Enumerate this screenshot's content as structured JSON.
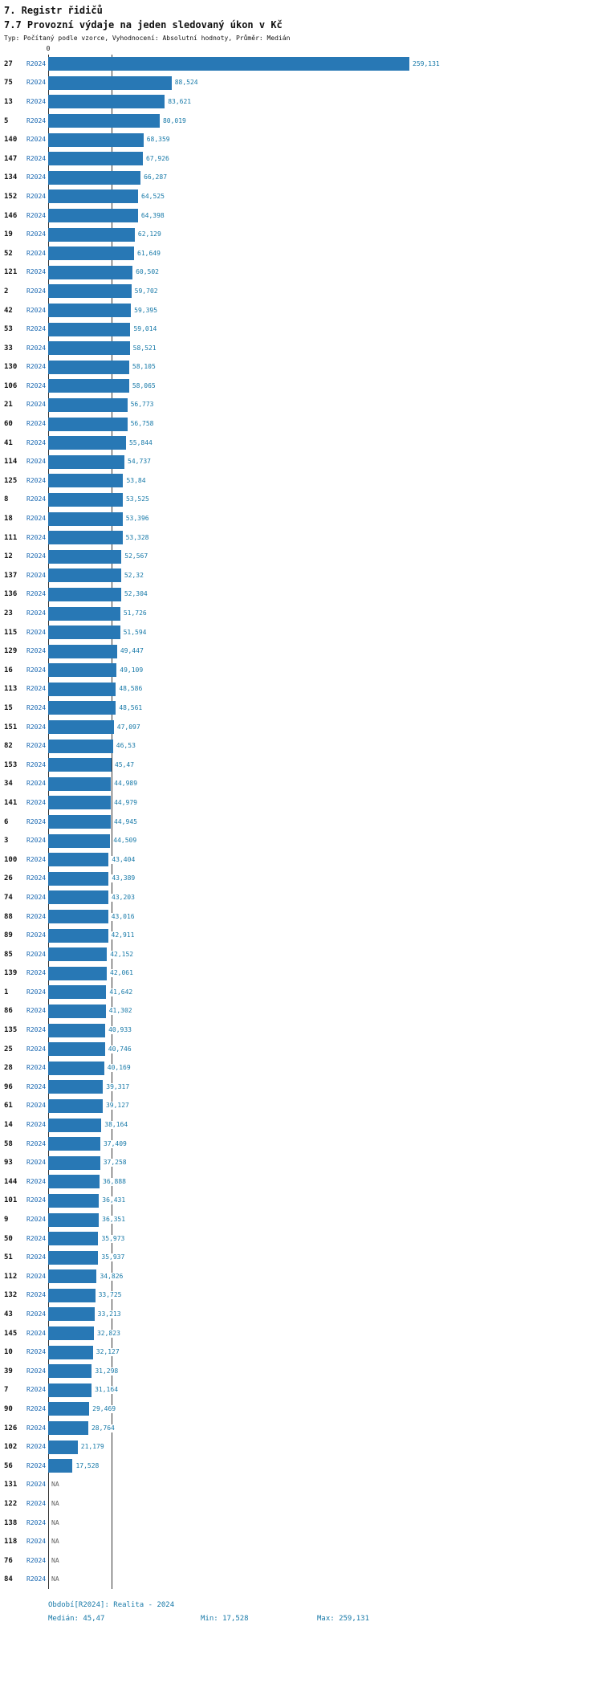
{
  "chart_data": {
    "type": "bar",
    "orientation": "horizontal",
    "section_title": "7. Registr řidičů",
    "title": "7.7 Provozní výdaje na jeden sledovaný úkon v Kč",
    "subtitle": "Typ: Počítaný podle vzorce, Vyhodnocení: Absolutní hodnoty, Průměr: Medián",
    "x_axis": {
      "zero_label": "0",
      "min": 0,
      "max": 259.131,
      "grid": false
    },
    "median_value": 45.47,
    "legend": "none",
    "colors": {
      "bar": "#2878b5",
      "period_label": "#1565b0",
      "value_label": "#1779a8",
      "footer": "#1779a8",
      "line": "#333333"
    },
    "rows": [
      {
        "rank": "27",
        "period": "R2024",
        "label": "259,131",
        "value": 259.131
      },
      {
        "rank": "75",
        "period": "R2024",
        "label": "88,524",
        "value": 88.524
      },
      {
        "rank": "13",
        "period": "R2024",
        "label": "83,621",
        "value": 83.621
      },
      {
        "rank": "5",
        "period": "R2024",
        "label": "80,019",
        "value": 80.019
      },
      {
        "rank": "140",
        "period": "R2024",
        "label": "68,359",
        "value": 68.359
      },
      {
        "rank": "147",
        "period": "R2024",
        "label": "67,926",
        "value": 67.926
      },
      {
        "rank": "134",
        "period": "R2024",
        "label": "66,287",
        "value": 66.287
      },
      {
        "rank": "152",
        "period": "R2024",
        "label": "64,525",
        "value": 64.525
      },
      {
        "rank": "146",
        "period": "R2024",
        "label": "64,398",
        "value": 64.398
      },
      {
        "rank": "19",
        "period": "R2024",
        "label": "62,129",
        "value": 62.129
      },
      {
        "rank": "52",
        "period": "R2024",
        "label": "61,649",
        "value": 61.649
      },
      {
        "rank": "121",
        "period": "R2024",
        "label": "60,502",
        "value": 60.502
      },
      {
        "rank": "2",
        "period": "R2024",
        "label": "59,702",
        "value": 59.702
      },
      {
        "rank": "42",
        "period": "R2024",
        "label": "59,395",
        "value": 59.395
      },
      {
        "rank": "53",
        "period": "R2024",
        "label": "59,014",
        "value": 59.014
      },
      {
        "rank": "33",
        "period": "R2024",
        "label": "58,521",
        "value": 58.521
      },
      {
        "rank": "130",
        "period": "R2024",
        "label": "58,105",
        "value": 58.105
      },
      {
        "rank": "106",
        "period": "R2024",
        "label": "58,065",
        "value": 58.065
      },
      {
        "rank": "21",
        "period": "R2024",
        "label": "56,773",
        "value": 56.773
      },
      {
        "rank": "60",
        "period": "R2024",
        "label": "56,758",
        "value": 56.758
      },
      {
        "rank": "41",
        "period": "R2024",
        "label": "55,844",
        "value": 55.844
      },
      {
        "rank": "114",
        "period": "R2024",
        "label": "54,737",
        "value": 54.737
      },
      {
        "rank": "125",
        "period": "R2024",
        "label": "53,84",
        "value": 53.84
      },
      {
        "rank": "8",
        "period": "R2024",
        "label": "53,525",
        "value": 53.525
      },
      {
        "rank": "18",
        "period": "R2024",
        "label": "53,396",
        "value": 53.396
      },
      {
        "rank": "111",
        "period": "R2024",
        "label": "53,328",
        "value": 53.328
      },
      {
        "rank": "12",
        "period": "R2024",
        "label": "52,567",
        "value": 52.567
      },
      {
        "rank": "137",
        "period": "R2024",
        "label": "52,32",
        "value": 52.32
      },
      {
        "rank": "136",
        "period": "R2024",
        "label": "52,304",
        "value": 52.304
      },
      {
        "rank": "23",
        "period": "R2024",
        "label": "51,726",
        "value": 51.726
      },
      {
        "rank": "115",
        "period": "R2024",
        "label": "51,594",
        "value": 51.594
      },
      {
        "rank": "129",
        "period": "R2024",
        "label": "49,447",
        "value": 49.447
      },
      {
        "rank": "16",
        "period": "R2024",
        "label": "49,109",
        "value": 49.109
      },
      {
        "rank": "113",
        "period": "R2024",
        "label": "48,586",
        "value": 48.586
      },
      {
        "rank": "15",
        "period": "R2024",
        "label": "48,561",
        "value": 48.561
      },
      {
        "rank": "151",
        "period": "R2024",
        "label": "47,097",
        "value": 47.097
      },
      {
        "rank": "82",
        "period": "R2024",
        "label": "46,53",
        "value": 46.53
      },
      {
        "rank": "153",
        "period": "R2024",
        "label": "45,47",
        "value": 45.47
      },
      {
        "rank": "34",
        "period": "R2024",
        "label": "44,989",
        "value": 44.989
      },
      {
        "rank": "141",
        "period": "R2024",
        "label": "44,979",
        "value": 44.979
      },
      {
        "rank": "6",
        "period": "R2024",
        "label": "44,945",
        "value": 44.945
      },
      {
        "rank": "3",
        "period": "R2024",
        "label": "44,509",
        "value": 44.509
      },
      {
        "rank": "100",
        "period": "R2024",
        "label": "43,404",
        "value": 43.404
      },
      {
        "rank": "26",
        "period": "R2024",
        "label": "43,389",
        "value": 43.389
      },
      {
        "rank": "74",
        "period": "R2024",
        "label": "43,203",
        "value": 43.203
      },
      {
        "rank": "88",
        "period": "R2024",
        "label": "43,016",
        "value": 43.016
      },
      {
        "rank": "89",
        "period": "R2024",
        "label": "42,911",
        "value": 42.911
      },
      {
        "rank": "85",
        "period": "R2024",
        "label": "42,152",
        "value": 42.152
      },
      {
        "rank": "139",
        "period": "R2024",
        "label": "42,061",
        "value": 42.061
      },
      {
        "rank": "1",
        "period": "R2024",
        "label": "41,642",
        "value": 41.642
      },
      {
        "rank": "86",
        "period": "R2024",
        "label": "41,302",
        "value": 41.302
      },
      {
        "rank": "135",
        "period": "R2024",
        "label": "40,933",
        "value": 40.933
      },
      {
        "rank": "25",
        "period": "R2024",
        "label": "40,746",
        "value": 40.746
      },
      {
        "rank": "28",
        "period": "R2024",
        "label": "40,169",
        "value": 40.169
      },
      {
        "rank": "96",
        "period": "R2024",
        "label": "39,317",
        "value": 39.317
      },
      {
        "rank": "61",
        "period": "R2024",
        "label": "39,127",
        "value": 39.127
      },
      {
        "rank": "14",
        "period": "R2024",
        "label": "38,164",
        "value": 38.164
      },
      {
        "rank": "58",
        "period": "R2024",
        "label": "37,409",
        "value": 37.409
      },
      {
        "rank": "93",
        "period": "R2024",
        "label": "37,258",
        "value": 37.258
      },
      {
        "rank": "144",
        "period": "R2024",
        "label": "36,888",
        "value": 36.888
      },
      {
        "rank": "101",
        "period": "R2024",
        "label": "36,431",
        "value": 36.431
      },
      {
        "rank": "9",
        "period": "R2024",
        "label": "36,351",
        "value": 36.351
      },
      {
        "rank": "50",
        "period": "R2024",
        "label": "35,973",
        "value": 35.973
      },
      {
        "rank": "51",
        "period": "R2024",
        "label": "35,937",
        "value": 35.937
      },
      {
        "rank": "112",
        "period": "R2024",
        "label": "34,826",
        "value": 34.826
      },
      {
        "rank": "132",
        "period": "R2024",
        "label": "33,725",
        "value": 33.725
      },
      {
        "rank": "43",
        "period": "R2024",
        "label": "33,213",
        "value": 33.213
      },
      {
        "rank": "145",
        "period": "R2024",
        "label": "32,823",
        "value": 32.823
      },
      {
        "rank": "10",
        "period": "R2024",
        "label": "32,127",
        "value": 32.127
      },
      {
        "rank": "39",
        "period": "R2024",
        "label": "31,298",
        "value": 31.298
      },
      {
        "rank": "7",
        "period": "R2024",
        "label": "31,164",
        "value": 31.164
      },
      {
        "rank": "90",
        "period": "R2024",
        "label": "29,469",
        "value": 29.469
      },
      {
        "rank": "126",
        "period": "R2024",
        "label": "28,764",
        "value": 28.764
      },
      {
        "rank": "102",
        "period": "R2024",
        "label": "21,179",
        "value": 21.179
      },
      {
        "rank": "56",
        "period": "R2024",
        "label": "17,528",
        "value": 17.528
      },
      {
        "rank": "131",
        "period": "R2024",
        "label": "NA",
        "value": null
      },
      {
        "rank": "122",
        "period": "R2024",
        "label": "NA",
        "value": null
      },
      {
        "rank": "138",
        "period": "R2024",
        "label": "NA",
        "value": null
      },
      {
        "rank": "118",
        "period": "R2024",
        "label": "NA",
        "value": null
      },
      {
        "rank": "76",
        "period": "R2024",
        "label": "NA",
        "value": null
      },
      {
        "rank": "84",
        "period": "R2024",
        "label": "NA",
        "value": null
      }
    ]
  },
  "footer": {
    "period": "Období[R2024]: Realita - 2024",
    "median": "Medián: 45,47",
    "min": "Min: 17,528",
    "max": "Max: 259,131"
  }
}
